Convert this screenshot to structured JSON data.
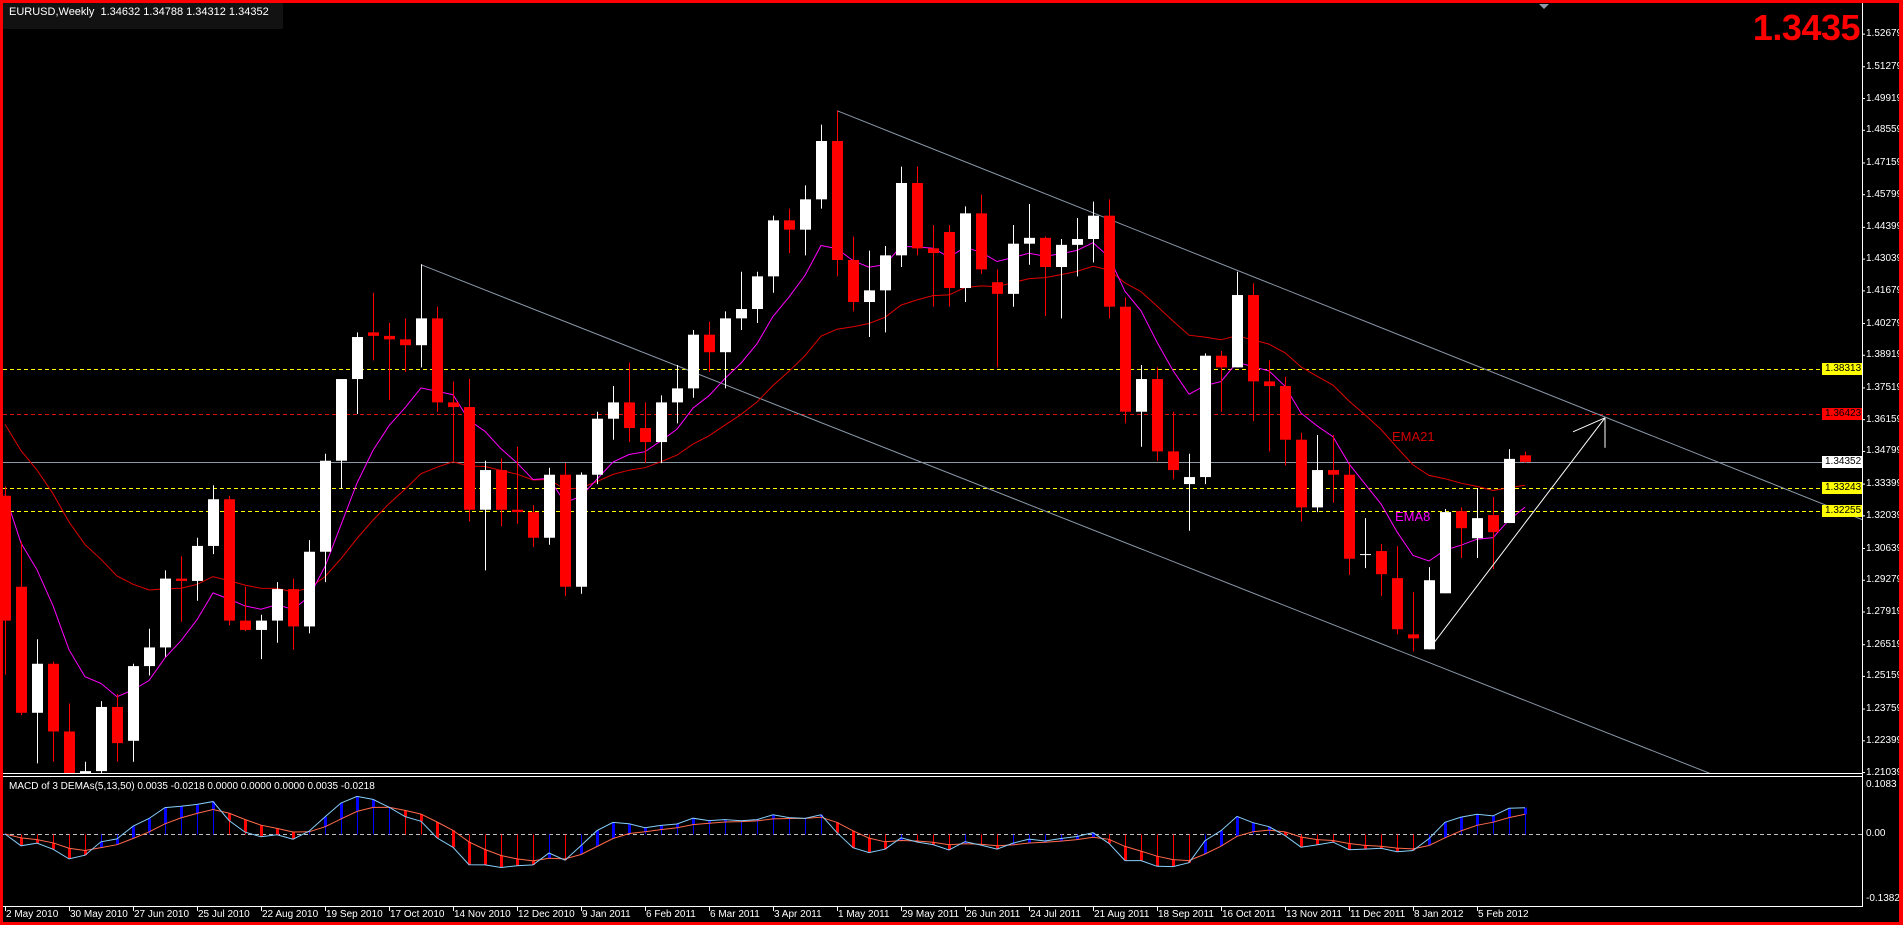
{
  "window": {
    "symbol_info": "EURUSD,Weekly  1.34632 1.34788 1.34312 1.34352",
    "big_price": "1.3435"
  },
  "chart_data": {
    "type": "candlestick",
    "symbol": "EURUSD",
    "timeframe": "Weekly",
    "first_bar_date": "2010-05-02",
    "ylim": [
      1.2102,
      1.5397
    ],
    "grid": false,
    "colors": {
      "bull": "#ffffff",
      "bear": "#ff0000",
      "background": "#000000",
      "trendline": "#8a98a8",
      "ema8": "#ff00ff",
      "ema21": "#e00000",
      "macd": "#87cefa",
      "signal": "#ff6a4d",
      "hist_up": "#0000ff",
      "hist_down": "#ff0000"
    },
    "ohlc": [
      [
        1.329,
        1.333,
        1.2523,
        1.2755
      ],
      [
        1.29,
        1.3094,
        1.235,
        1.236
      ],
      [
        1.236,
        1.2675,
        1.2143,
        1.257
      ],
      [
        1.257,
        1.258,
        1.215,
        1.228
      ],
      [
        1.228,
        1.24,
        1.1875,
        1.197
      ],
      [
        1.196,
        1.215,
        1.1876,
        1.211
      ],
      [
        1.211,
        1.241,
        1.21,
        1.2385
      ],
      [
        1.2385,
        1.244,
        1.215,
        1.223
      ],
      [
        1.224,
        1.257,
        1.215,
        1.256
      ],
      [
        1.256,
        1.272,
        1.252,
        1.264
      ],
      [
        1.264,
        1.297,
        1.26,
        1.2935
      ],
      [
        1.2935,
        1.303,
        1.275,
        1.2925
      ],
      [
        1.2925,
        1.311,
        1.284,
        1.3075
      ],
      [
        1.3075,
        1.3335,
        1.304,
        1.3275
      ],
      [
        1.3275,
        1.329,
        1.2735,
        1.2755
      ],
      [
        1.2755,
        1.29,
        1.271,
        1.2715
      ],
      [
        1.2715,
        1.278,
        1.259,
        1.2755
      ],
      [
        1.2755,
        1.292,
        1.266,
        1.289
      ],
      [
        1.289,
        1.2935,
        1.263,
        1.273
      ],
      [
        1.273,
        1.31,
        1.27,
        1.305
      ],
      [
        1.305,
        1.347,
        1.292,
        1.344
      ],
      [
        1.344,
        1.379,
        1.332,
        1.379
      ],
      [
        1.379,
        1.399,
        1.364,
        1.397
      ],
      [
        1.399,
        1.416,
        1.387,
        1.3975
      ],
      [
        1.3975,
        1.403,
        1.37,
        1.396
      ],
      [
        1.396,
        1.405,
        1.382,
        1.3935
      ],
      [
        1.3935,
        1.4282,
        1.384,
        1.405
      ],
      [
        1.405,
        1.41,
        1.365,
        1.369
      ],
      [
        1.369,
        1.378,
        1.344,
        1.367
      ],
      [
        1.367,
        1.379,
        1.318,
        1.323
      ],
      [
        1.323,
        1.344,
        1.297,
        1.34
      ],
      [
        1.34,
        1.345,
        1.316,
        1.323
      ],
      [
        1.323,
        1.35,
        1.317,
        1.322
      ],
      [
        1.322,
        1.325,
        1.307,
        1.311
      ],
      [
        1.311,
        1.341,
        1.308,
        1.338
      ],
      [
        1.338,
        1.343,
        1.286,
        1.29
      ],
      [
        1.29,
        1.339,
        1.287,
        1.338
      ],
      [
        1.338,
        1.365,
        1.334,
        1.362
      ],
      [
        1.362,
        1.376,
        1.353,
        1.369
      ],
      [
        1.369,
        1.386,
        1.352,
        1.358
      ],
      [
        1.358,
        1.369,
        1.343,
        1.352
      ],
      [
        1.352,
        1.372,
        1.343,
        1.369
      ],
      [
        1.369,
        1.385,
        1.36,
        1.375
      ],
      [
        1.375,
        1.4,
        1.371,
        1.398
      ],
      [
        1.398,
        1.4035,
        1.382,
        1.3905
      ],
      [
        1.3905,
        1.408,
        1.375,
        1.405
      ],
      [
        1.405,
        1.425,
        1.4,
        1.409
      ],
      [
        1.409,
        1.425,
        1.403,
        1.423
      ],
      [
        1.423,
        1.449,
        1.416,
        1.447
      ],
      [
        1.447,
        1.452,
        1.433,
        1.443
      ],
      [
        1.443,
        1.462,
        1.432,
        1.456
      ],
      [
        1.456,
        1.488,
        1.452,
        1.481
      ],
      [
        1.481,
        1.494,
        1.423,
        1.43
      ],
      [
        1.43,
        1.44,
        1.408,
        1.412
      ],
      [
        1.412,
        1.434,
        1.397,
        1.417
      ],
      [
        1.417,
        1.436,
        1.399,
        1.432
      ],
      [
        1.432,
        1.47,
        1.427,
        1.463
      ],
      [
        1.463,
        1.47,
        1.432,
        1.435
      ],
      [
        1.435,
        1.445,
        1.41,
        1.433
      ],
      [
        1.442,
        1.445,
        1.41,
        1.418
      ],
      [
        1.418,
        1.453,
        1.412,
        1.45
      ],
      [
        1.45,
        1.458,
        1.424,
        1.426
      ],
      [
        1.4205,
        1.426,
        1.384,
        1.4155
      ],
      [
        1.4155,
        1.445,
        1.41,
        1.437
      ],
      [
        1.437,
        1.454,
        1.428,
        1.4395
      ],
      [
        1.4395,
        1.44,
        1.406,
        1.427
      ],
      [
        1.427,
        1.439,
        1.405,
        1.4365
      ],
      [
        1.4365,
        1.448,
        1.423,
        1.439
      ],
      [
        1.439,
        1.455,
        1.429,
        1.449
      ],
      [
        1.449,
        1.456,
        1.405,
        1.41
      ],
      [
        1.41,
        1.414,
        1.36,
        1.365
      ],
      [
        1.365,
        1.385,
        1.35,
        1.379
      ],
      [
        1.379,
        1.384,
        1.344,
        1.348
      ],
      [
        1.348,
        1.365,
        1.336,
        1.34
      ],
      [
        1.334,
        1.347,
        1.314,
        1.337
      ],
      [
        1.337,
        1.39,
        1.334,
        1.389
      ],
      [
        1.389,
        1.391,
        1.365,
        1.384
      ],
      [
        1.384,
        1.425,
        1.384,
        1.415
      ],
      [
        1.415,
        1.42,
        1.361,
        1.378
      ],
      [
        1.378,
        1.387,
        1.348,
        1.376
      ],
      [
        1.376,
        1.38,
        1.342,
        1.353
      ],
      [
        1.353,
        1.356,
        1.318,
        1.324
      ],
      [
        1.324,
        1.355,
        1.322,
        1.34
      ],
      [
        1.34,
        1.355,
        1.326,
        1.338
      ],
      [
        1.338,
        1.343,
        1.295,
        1.302
      ],
      [
        1.304,
        1.3194,
        1.298,
        1.304
      ],
      [
        1.3053,
        1.3083,
        1.286,
        1.2954
      ],
      [
        1.2937,
        1.3074,
        1.2696,
        1.2718
      ],
      [
        1.2696,
        1.2877,
        1.2623,
        1.2679
      ],
      [
        1.2632,
        1.2984,
        1.2632,
        1.2928
      ],
      [
        1.2872,
        1.3233,
        1.2872,
        1.322
      ],
      [
        1.3224,
        1.324,
        1.3023,
        1.3151
      ],
      [
        1.3108,
        1.3323,
        1.3023,
        1.3194
      ],
      [
        1.3207,
        1.3285,
        1.2976,
        1.3134
      ],
      [
        1.3173,
        1.349,
        1.3173,
        1.3448
      ],
      [
        1.34632,
        1.34788,
        1.34312,
        1.34352
      ]
    ],
    "y_ticks": [
      "1.52679",
      "1.51279",
      "1.49919",
      "1.48559",
      "1.47159",
      "1.45799",
      "1.44399",
      "1.43039",
      "1.41679",
      "1.40279",
      "1.38919",
      "1.37519",
      "1.36159",
      "1.34799",
      "1.33399",
      "1.32039",
      "1.30639",
      "1.29279",
      "1.27919",
      "1.26519",
      "1.25159",
      "1.23759",
      "1.22399",
      "1.21039"
    ],
    "x_ticks": [
      "2 May 2010",
      "30 May 2010",
      "27 Jun 2010",
      "25 Jul 2010",
      "22 Aug 2010",
      "19 Sep 2010",
      "17 Oct 2010",
      "14 Nov 2010",
      "12 Dec 2010",
      "9 Jan 2011",
      "6 Feb 2011",
      "6 Mar 2011",
      "3 Apr 2011",
      "1 May 2011",
      "29 May 2011",
      "26 Jun 2011",
      "24 Jul 2011",
      "21 Aug 2011",
      "18 Sep 2011",
      "16 Oct 2011",
      "13 Nov 2011",
      "11 Dec 2011",
      "8 Jan 2012",
      "5 Feb 2012"
    ],
    "levels": [
      {
        "value": "1.38313",
        "color": "#ffff00",
        "style": "dashed",
        "label_bg": "#ffff00",
        "label_fg": "#000000"
      },
      {
        "value": "1.36423",
        "color": "#e01010",
        "style": "dashed",
        "label_bg": "#ff0000",
        "label_fg": "#000000"
      },
      {
        "value": "1.34352",
        "color": "#8a98a8",
        "style": "solid",
        "label_bg": "#ffffff",
        "label_fg": "#000000"
      },
      {
        "value": "1.33243",
        "color": "#ffff00",
        "style": "dashed",
        "label_bg": "#ffff00",
        "label_fg": "#000000"
      },
      {
        "value": "1.32255",
        "color": "#ffff00",
        "style": "dashed",
        "label_bg": "#ffff00",
        "label_fg": "#000000"
      }
    ],
    "trendlines": [
      {
        "from": {
          "date": "2011-05-01",
          "price": 1.494
        },
        "to": {
          "date": "2012-02-26",
          "price": 1.3764
        }
      },
      {
        "from": {
          "date": "2010-10-31",
          "price": 1.428
        },
        "to": {
          "date": "2012-02-26",
          "price": 1.2413
        }
      }
    ],
    "arrow": {
      "from": {
        "date": "2012-01-15",
        "price": 1.2632
      },
      "to": {
        "date": "2012-04-01",
        "price": 1.3624
      }
    },
    "indicators": {
      "ema21_label": "EMA21",
      "ema8_label": "EMA8"
    },
    "macd": {
      "title": "MACD of 3 DEMAs(5,13,50) 0.0035 -0.0218 0.0000 0.0000 0.0000 0.0035 -0.0218",
      "ylim": [
        -0.1382,
        0.1083
      ],
      "ticks": [
        "0.1083",
        "0.00",
        "-0.1382"
      ]
    }
  }
}
